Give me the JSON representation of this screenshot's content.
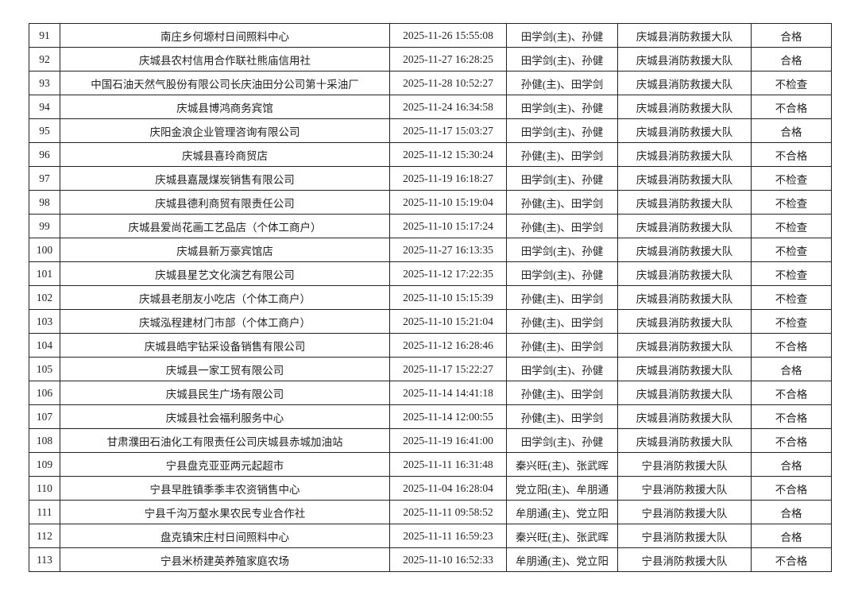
{
  "rows": [
    {
      "no": "91",
      "name": "南庄乡何塬村日间照料中心",
      "time": "2025-11-26 15:55:08",
      "inspectors": "田学剑(主)、孙健",
      "unit": "庆城县消防救援大队",
      "result": "合格"
    },
    {
      "no": "92",
      "name": "庆城县农村信用合作联社熊庙信用社",
      "time": "2025-11-27 16:28:25",
      "inspectors": "田学剑(主)、孙健",
      "unit": "庆城县消防救援大队",
      "result": "合格"
    },
    {
      "no": "93",
      "name": "中国石油天然气股份有限公司长庆油田分公司第十采油厂",
      "time": "2025-11-28 10:52:27",
      "inspectors": "孙健(主)、田学剑",
      "unit": "庆城县消防救援大队",
      "result": "不检查"
    },
    {
      "no": "94",
      "name": "庆城县博鸿商务宾馆",
      "time": "2025-11-24 16:34:58",
      "inspectors": "田学剑(主)、孙健",
      "unit": "庆城县消防救援大队",
      "result": "不合格"
    },
    {
      "no": "95",
      "name": "庆阳金浪企业管理咨询有限公司",
      "time": "2025-11-17 15:03:27",
      "inspectors": "田学剑(主)、孙健",
      "unit": "庆城县消防救援大队",
      "result": "合格"
    },
    {
      "no": "96",
      "name": "庆城县喜玲商贸店",
      "time": "2025-11-12 15:30:24",
      "inspectors": "孙健(主)、田学剑",
      "unit": "庆城县消防救援大队",
      "result": "不合格"
    },
    {
      "no": "97",
      "name": "庆城县嘉晟煤炭销售有限公司",
      "time": "2025-11-19 16:18:27",
      "inspectors": "田学剑(主)、孙健",
      "unit": "庆城县消防救援大队",
      "result": "不检查"
    },
    {
      "no": "98",
      "name": "庆城县德利商贸有限责任公司",
      "time": "2025-11-10 15:19:04",
      "inspectors": "孙健(主)、田学剑",
      "unit": "庆城县消防救援大队",
      "result": "不检查"
    },
    {
      "no": "99",
      "name": "庆城县爱尚花画工艺品店（个体工商户）",
      "time": "2025-11-10 15:17:24",
      "inspectors": "孙健(主)、田学剑",
      "unit": "庆城县消防救援大队",
      "result": "不检查"
    },
    {
      "no": "100",
      "name": "庆城县新万豪宾馆店",
      "time": "2025-11-27 16:13:35",
      "inspectors": "田学剑(主)、孙健",
      "unit": "庆城县消防救援大队",
      "result": "不检查"
    },
    {
      "no": "101",
      "name": "庆城县星艺文化演艺有限公司",
      "time": "2025-11-12 17:22:35",
      "inspectors": "田学剑(主)、孙健",
      "unit": "庆城县消防救援大队",
      "result": "不检查"
    },
    {
      "no": "102",
      "name": "庆城县老朋友小吃店（个体工商户）",
      "time": "2025-11-10 15:15:39",
      "inspectors": "孙健(主)、田学剑",
      "unit": "庆城县消防救援大队",
      "result": "不检查"
    },
    {
      "no": "103",
      "name": "庆城泓程建材门市部（个体工商户）",
      "time": "2025-11-10 15:21:04",
      "inspectors": "孙健(主)、田学剑",
      "unit": "庆城县消防救援大队",
      "result": "不检查"
    },
    {
      "no": "104",
      "name": "庆城县皓宇钻采设备销售有限公司",
      "time": "2025-11-12 16:28:46",
      "inspectors": "孙健(主)、田学剑",
      "unit": "庆城县消防救援大队",
      "result": "不合格"
    },
    {
      "no": "105",
      "name": "庆城县一家工贸有限公司",
      "time": "2025-11-17 15:22:27",
      "inspectors": "田学剑(主)、孙健",
      "unit": "庆城县消防救援大队",
      "result": "合格"
    },
    {
      "no": "106",
      "name": "庆城县民生广场有限公司",
      "time": "2025-11-14 14:41:18",
      "inspectors": "孙健(主)、田学剑",
      "unit": "庆城县消防救援大队",
      "result": "不合格"
    },
    {
      "no": "107",
      "name": "庆城县社会福利服务中心",
      "time": "2025-11-14 12:00:55",
      "inspectors": "孙健(主)、田学剑",
      "unit": "庆城县消防救援大队",
      "result": "不合格"
    },
    {
      "no": "108",
      "name": "甘肃濮田石油化工有限责任公司庆城县赤城加油站",
      "time": "2025-11-19 16:41:00",
      "inspectors": "田学剑(主)、孙健",
      "unit": "庆城县消防救援大队",
      "result": "不合格"
    },
    {
      "no": "109",
      "name": "宁县盘克亚亚两元起超市",
      "time": "2025-11-11 16:31:48",
      "inspectors": "秦兴旺(主)、张武晖",
      "unit": "宁县消防救援大队",
      "result": "合格"
    },
    {
      "no": "110",
      "name": "宁县早胜镇季季丰农资销售中心",
      "time": "2025-11-04 16:28:04",
      "inspectors": "党立阳(主)、牟朋通",
      "unit": "宁县消防救援大队",
      "result": "不合格"
    },
    {
      "no": "111",
      "name": "宁县千沟万壑水果农民专业合作社",
      "time": "2025-11-11 09:58:52",
      "inspectors": "牟朋通(主)、党立阳",
      "unit": "宁县消防救援大队",
      "result": "合格"
    },
    {
      "no": "112",
      "name": "盘克镇宋庄村日间照料中心",
      "time": "2025-11-11 16:59:23",
      "inspectors": "秦兴旺(主)、张武晖",
      "unit": "宁县消防救援大队",
      "result": "合格"
    },
    {
      "no": "113",
      "name": "宁县米桥建英养殖家庭农场",
      "time": "2025-11-10 16:52:33",
      "inspectors": "牟朋通(主)、党立阳",
      "unit": "宁县消防救援大队",
      "result": "不合格"
    }
  ]
}
